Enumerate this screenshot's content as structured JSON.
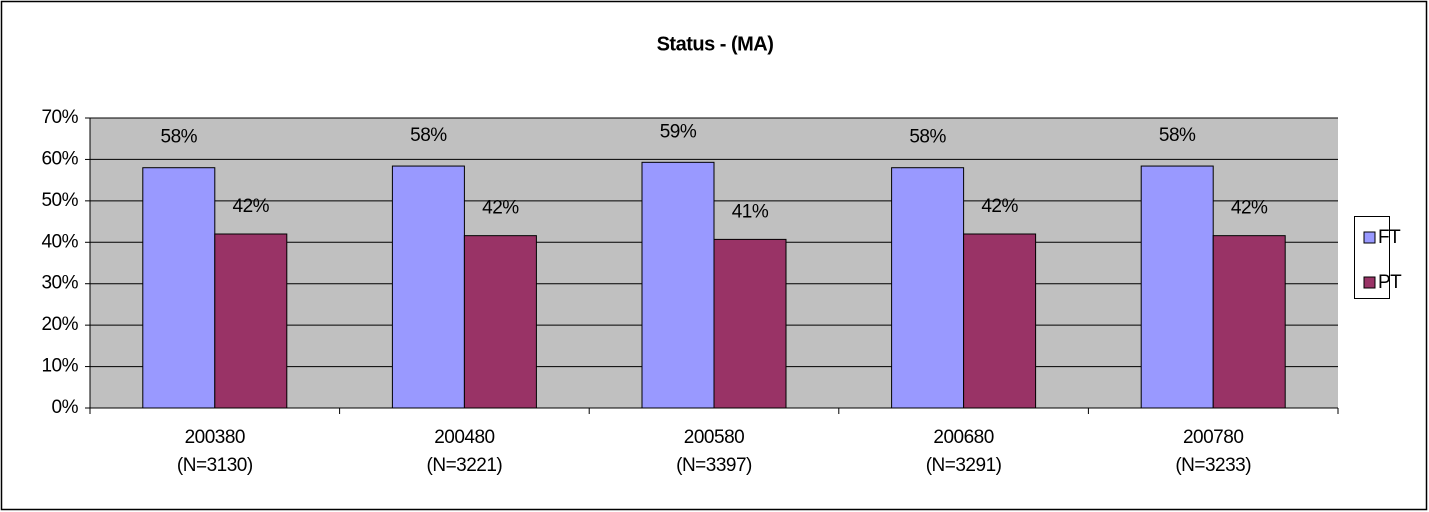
{
  "chart_data": {
    "type": "bar",
    "title": "Status -  (MA)",
    "categories": [
      [
        "200380",
        "(N=3130)"
      ],
      [
        "200480",
        "(N=3221)"
      ],
      [
        "200580",
        "(N=3397)"
      ],
      [
        "200680",
        "(N=3291)"
      ],
      [
        "200780",
        "(N=3233)"
      ]
    ],
    "series": [
      {
        "name": "FT",
        "color": "#9999ff",
        "values": [
          58.0,
          58.4,
          59.3,
          58.0,
          58.4
        ],
        "value_labels": [
          "58%",
          "58%",
          "59%",
          "58%",
          "58%"
        ]
      },
      {
        "name": "PT",
        "color": "#993366",
        "values": [
          42.0,
          41.6,
          40.7,
          42.0,
          41.6
        ],
        "value_labels": [
          "42%",
          "42%",
          "41%",
          "42%",
          "42%"
        ]
      }
    ],
    "ylim": [
      0,
      70
    ],
    "yticks": [
      {
        "value": 0,
        "label": "0%"
      },
      {
        "value": 10,
        "label": "10%"
      },
      {
        "value": 20,
        "label": "20%"
      },
      {
        "value": 30,
        "label": "30%"
      },
      {
        "value": 40,
        "label": "40%"
      },
      {
        "value": 50,
        "label": "50%"
      },
      {
        "value": 60,
        "label": "60%"
      },
      {
        "value": 70,
        "label": "70%"
      }
    ],
    "grid": true,
    "legend": "right"
  }
}
